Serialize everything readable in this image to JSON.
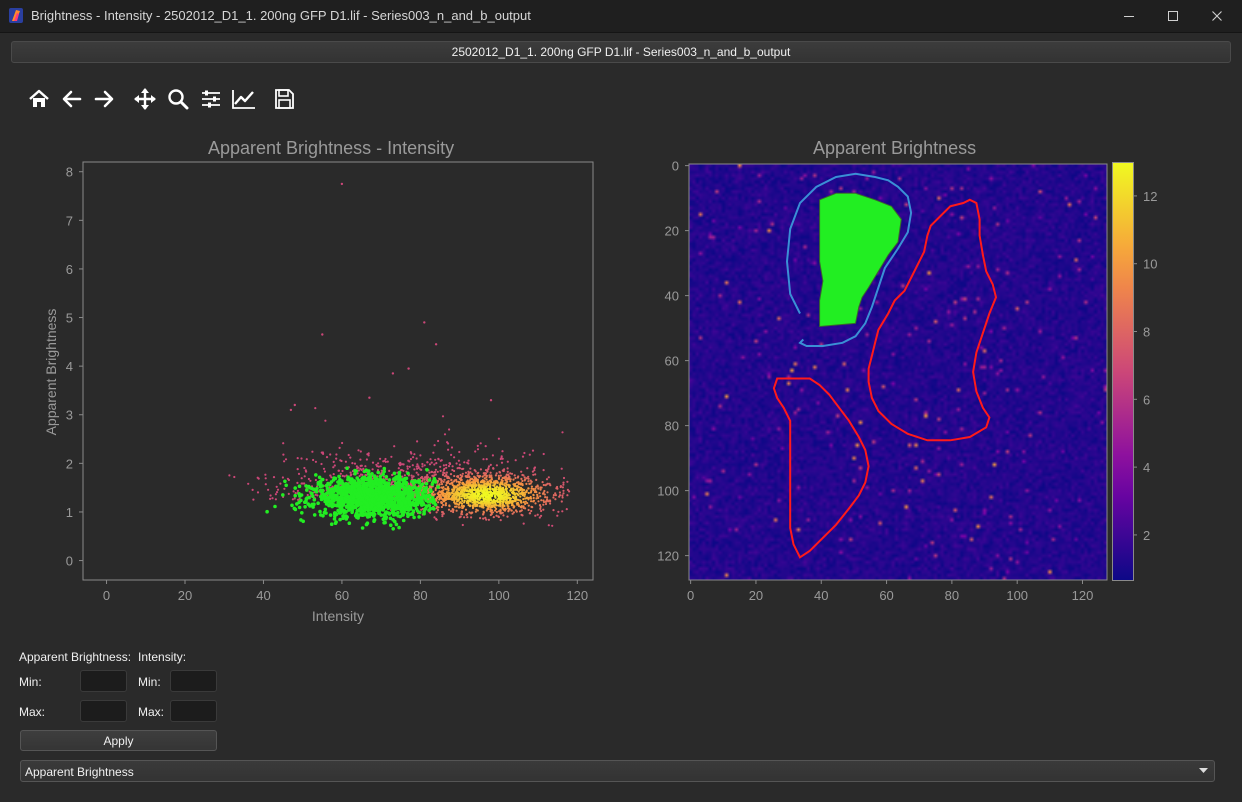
{
  "window": {
    "title": "Brightness - Intensity - 2502012_D1_1. 200ng GFP D1.lif - Series003_n_and_b_output"
  },
  "file_bar": {
    "label": "2502012_D1_1. 200ng GFP D1.lif - Series003_n_and_b_output"
  },
  "toolbar": {
    "icons": [
      "home-icon",
      "back-arrow-icon",
      "forward-arrow-icon",
      "pan-icon",
      "zoom-icon",
      "subplots-icon",
      "customize-icon",
      "save-icon"
    ]
  },
  "scatter_plot": {
    "title": "Apparent Brightness - Intensity",
    "xlabel": "Intensity",
    "ylabel": "Apparent Brightness",
    "x_ticks": [
      "0",
      "20",
      "40",
      "60",
      "80",
      "100",
      "120"
    ],
    "y_ticks": [
      "0",
      "1",
      "2",
      "3",
      "4",
      "5",
      "6",
      "7",
      "8"
    ]
  },
  "image_plot": {
    "title": "Apparent Brightness",
    "x_ticks": [
      "0",
      "20",
      "40",
      "60",
      "80",
      "100",
      "120"
    ],
    "y_ticks": [
      "0",
      "20",
      "40",
      "60",
      "80",
      "100",
      "120"
    ],
    "colorbar_ticks": [
      "2",
      "4",
      "6",
      "8",
      "10",
      "12"
    ]
  },
  "colors": {
    "background": "#2a2a2a",
    "selected_points": "#22ee22",
    "mask_outline": "#ff1a1a",
    "contour_line": "#3a8fd6",
    "colormap": "plasma"
  },
  "chart_data": [
    {
      "type": "scatter",
      "title": "Apparent Brightness - Intensity",
      "xlabel": "Intensity",
      "ylabel": "Apparent Brightness",
      "xlim": [
        -6,
        124
      ],
      "ylim": [
        -0.4,
        8.2
      ],
      "grid": false,
      "series": [
        {
          "color": "density (magenta to yellow)",
          "cloud": {
            "x_range": [
              25,
              118
            ],
            "y_range": [
              0.7,
              3.8
            ],
            "peak_x": 97,
            "peak_y": 1.35
          },
          "outliers": [
            [
              60,
              7.75
            ],
            [
              55,
              4.65
            ],
            [
              81,
              4.9
            ],
            [
              84,
              4.45
            ],
            [
              77,
              3.95
            ],
            [
              73,
              3.85
            ],
            [
              48,
              3.2
            ],
            [
              47,
              3.1
            ],
            [
              98,
              3.3
            ],
            [
              67,
              3.35
            ]
          ]
        },
        {
          "color": "#22ee22",
          "cloud": {
            "x_range": [
              40,
              85
            ],
            "y_range": [
              0.65,
              2.1
            ],
            "peak_x": 68,
            "peak_y": 1.3
          }
        }
      ]
    },
    {
      "type": "heatmap",
      "title": "Apparent Brightness",
      "xlim": [
        0,
        128
      ],
      "ylim": [
        128,
        0
      ],
      "colormap": "plasma",
      "color_range": [
        0.7,
        13
      ],
      "background_value": 1.3,
      "regions": [
        {
          "kind": "filled",
          "color": "#22ee22",
          "polygon": [
            [
              40,
              11
            ],
            [
              45,
              9
            ],
            [
              51,
              9
            ],
            [
              57,
              11
            ],
            [
              62,
              13
            ],
            [
              65,
              17
            ],
            [
              64,
              24
            ],
            [
              61,
              28
            ],
            [
              58,
              33
            ],
            [
              55,
              38
            ],
            [
              53,
              41
            ],
            [
              52,
              44
            ],
            [
              51,
              49
            ],
            [
              40,
              50
            ],
            [
              40,
              42
            ],
            [
              41,
              36
            ],
            [
              40,
              30
            ],
            [
              40,
              22
            ],
            [
              40,
              15
            ]
          ]
        },
        {
          "kind": "outline",
          "color": "#3a8fd6",
          "polyline": [
            [
              34,
              46
            ],
            [
              31,
              40
            ],
            [
              30,
              30
            ],
            [
              31,
              20
            ],
            [
              34,
              12
            ],
            [
              39,
              7
            ],
            [
              45,
              4
            ],
            [
              51,
              3
            ],
            [
              57,
              4
            ],
            [
              61,
              5
            ],
            [
              64,
              7
            ],
            [
              67,
              10
            ],
            [
              68,
              15
            ],
            [
              67,
              21
            ],
            [
              64,
              26
            ],
            [
              60,
              32
            ],
            [
              58,
              38
            ],
            [
              56,
              44
            ],
            [
              54,
              49
            ],
            [
              51,
              53
            ],
            [
              47,
              55
            ],
            [
              41,
              56
            ],
            [
              36,
              56
            ],
            [
              34,
              55
            ],
            [
              35,
              54
            ]
          ]
        },
        {
          "kind": "outline",
          "color": "#ff1a1a",
          "polygon": [
            [
              88,
              12
            ],
            [
              86,
              11
            ],
            [
              84,
              12
            ],
            [
              80,
              13
            ],
            [
              77,
              16
            ],
            [
              74,
              19
            ],
            [
              73,
              22
            ],
            [
              72,
              27
            ],
            [
              70,
              31
            ],
            [
              68,
              35
            ],
            [
              66,
              39
            ],
            [
              63,
              42
            ],
            [
              61,
              46
            ],
            [
              58,
              51
            ],
            [
              57,
              55
            ],
            [
              56,
              59
            ],
            [
              55,
              63
            ],
            [
              55,
              67
            ],
            [
              56,
              72
            ],
            [
              58,
              76
            ],
            [
              62,
              80
            ],
            [
              67,
              83
            ],
            [
              73,
              85
            ],
            [
              80,
              85
            ],
            [
              86,
              84
            ],
            [
              91,
              81
            ],
            [
              92,
              78
            ],
            [
              90,
              75
            ],
            [
              88,
              70
            ],
            [
              87,
              64
            ],
            [
              88,
              58
            ],
            [
              90,
              52
            ],
            [
              92,
              46
            ],
            [
              94,
              41
            ],
            [
              93,
              37
            ],
            [
              91,
              33
            ],
            [
              90,
              28
            ],
            [
              89,
              22
            ],
            [
              89,
              17
            ]
          ]
        },
        {
          "kind": "outline",
          "color": "#ff1a1a",
          "polygon": [
            [
              27,
              66
            ],
            [
              26,
              69
            ],
            [
              27,
              72
            ],
            [
              29,
              75
            ],
            [
              31,
              79
            ],
            [
              31,
              84
            ],
            [
              31,
              90
            ],
            [
              31,
              96
            ],
            [
              31,
              101
            ],
            [
              31,
              106
            ],
            [
              31,
              112
            ],
            [
              32,
              117
            ],
            [
              34,
              121
            ],
            [
              37,
              119
            ],
            [
              41,
              115
            ],
            [
              45,
              111
            ],
            [
              49,
              106
            ],
            [
              52,
              102
            ],
            [
              54,
              98
            ],
            [
              55,
              93
            ],
            [
              54,
              88
            ],
            [
              52,
              84
            ],
            [
              49,
              79
            ],
            [
              46,
              75
            ],
            [
              43,
              71
            ],
            [
              40,
              68
            ],
            [
              37,
              66
            ],
            [
              32,
              66
            ]
          ]
        }
      ]
    }
  ],
  "form": {
    "brightness_header": "Apparent Brightness:",
    "intensity_header": "Intensity:",
    "min_label": "Min:",
    "max_label": "Max:",
    "brightness_min": "",
    "brightness_max": "",
    "intensity_min": "",
    "intensity_max": "",
    "apply_label": "Apply",
    "dropdown_value": "Apparent Brightness"
  }
}
